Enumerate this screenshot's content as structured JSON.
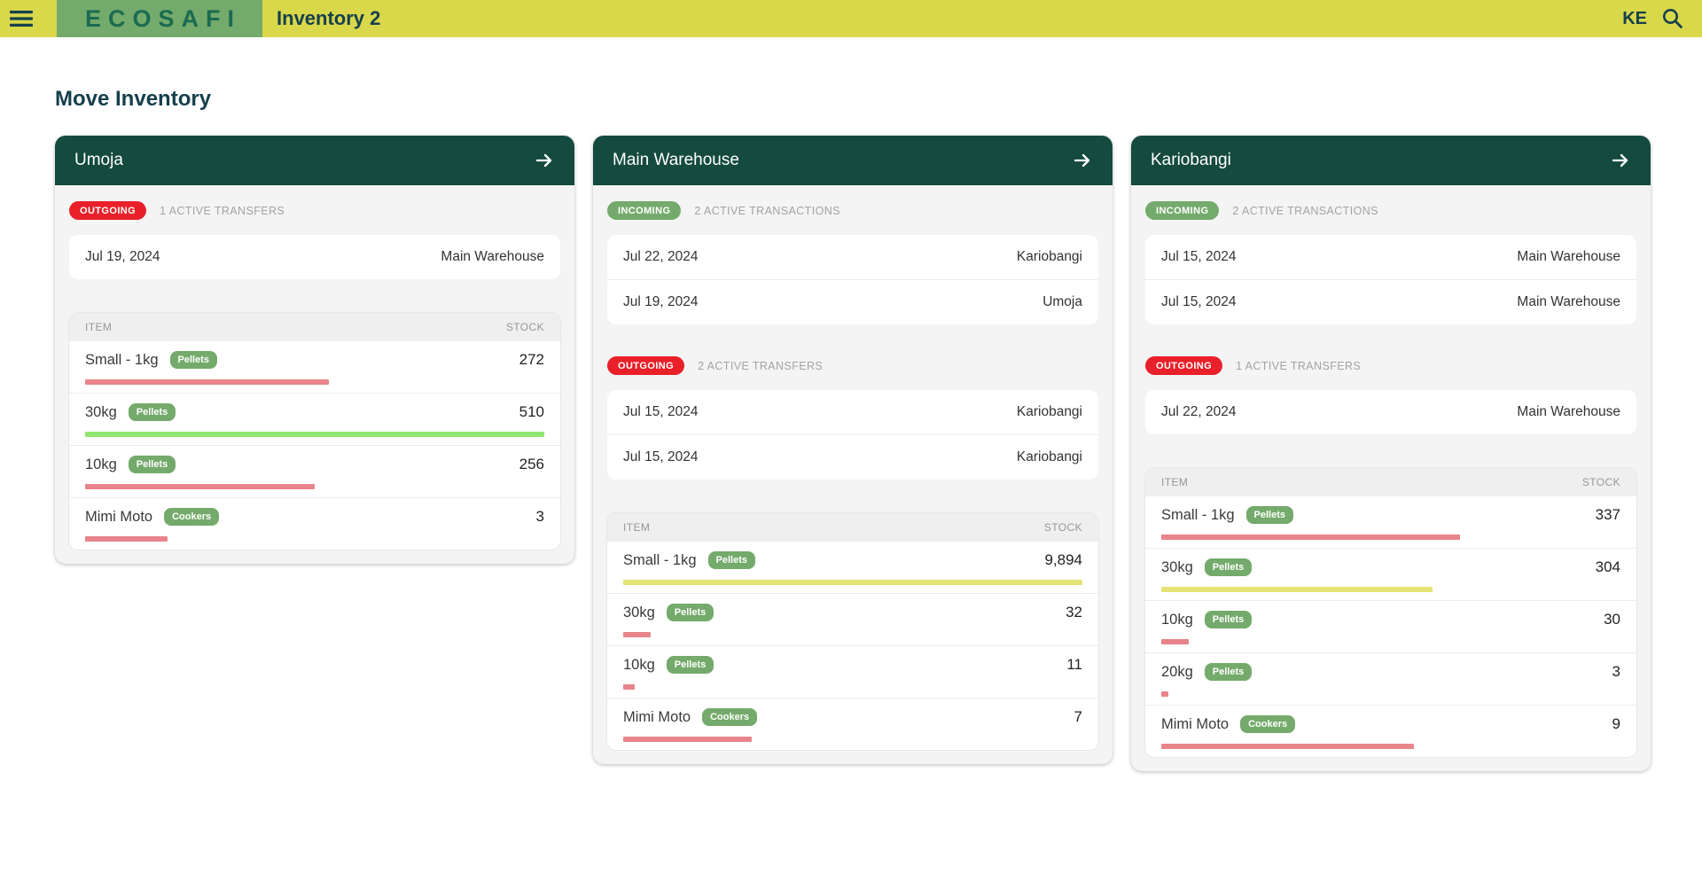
{
  "header": {
    "logo_text": "ECOSAFI",
    "app_title": "Inventory 2",
    "country_code": "KE",
    "icons": {
      "menu": "hamburger-icon",
      "search": "search-icon",
      "card_link": "arrow-right-icon"
    }
  },
  "page_title": "Move Inventory",
  "colors": {
    "appbar_bg": "#d9d74a",
    "logo_bg": "#74aa6b",
    "card_header_bg": "#154a3e",
    "outgoing_badge": "#e92029",
    "incoming_badge": "#74aa6b",
    "tag_badge": "#74aa6b",
    "bar_red": "#e8848a",
    "bar_green": "#90e56f",
    "bar_yellow": "#e5e276"
  },
  "cards": [
    {
      "title": "Umoja",
      "sections": [
        {
          "badge": "OUTGOING",
          "type": "outgoing",
          "label": "1 ACTIVE TRANSFERS",
          "transfers": [
            {
              "date": "Jul 19, 2024",
              "counterparty": "Main Warehouse"
            }
          ]
        }
      ],
      "table": {
        "headers": {
          "item": "ITEM",
          "stock": "STOCK"
        },
        "rows": [
          {
            "item": "Small - 1kg",
            "tag": "Pellets",
            "stock": "272",
            "bar": {
              "width_pct": 53,
              "color": "#e8848a"
            }
          },
          {
            "item": "30kg",
            "tag": "Pellets",
            "stock": "510",
            "bar": {
              "width_pct": 100,
              "color": "#90e56f"
            }
          },
          {
            "item": "10kg",
            "tag": "Pellets",
            "stock": "256",
            "bar": {
              "width_pct": 50,
              "color": "#e8848a"
            }
          },
          {
            "item": "Mimi Moto",
            "tag": "Cookers",
            "stock": "3",
            "bar": {
              "width_pct": 18,
              "color": "#e8848a"
            }
          }
        ]
      }
    },
    {
      "title": "Main Warehouse",
      "sections": [
        {
          "badge": "INCOMING",
          "type": "incoming",
          "label": "2 ACTIVE TRANSACTIONS",
          "transfers": [
            {
              "date": "Jul 22, 2024",
              "counterparty": "Kariobangi"
            },
            {
              "date": "Jul 19, 2024",
              "counterparty": "Umoja"
            }
          ]
        },
        {
          "badge": "OUTGOING",
          "type": "outgoing",
          "label": "2 ACTIVE TRANSFERS",
          "transfers": [
            {
              "date": "Jul 15, 2024",
              "counterparty": "Kariobangi"
            },
            {
              "date": "Jul 15, 2024",
              "counterparty": "Kariobangi"
            }
          ]
        }
      ],
      "table": {
        "headers": {
          "item": "ITEM",
          "stock": "STOCK"
        },
        "rows": [
          {
            "item": "Small - 1kg",
            "tag": "Pellets",
            "stock": "9,894",
            "bar": {
              "width_pct": 100,
              "color": "#e5e276"
            }
          },
          {
            "item": "30kg",
            "tag": "Pellets",
            "stock": "32",
            "bar": {
              "width_pct": 6,
              "color": "#e8848a"
            }
          },
          {
            "item": "10kg",
            "tag": "Pellets",
            "stock": "11",
            "bar": {
              "width_pct": 2.5,
              "color": "#e8848a"
            }
          },
          {
            "item": "Mimi Moto",
            "tag": "Cookers",
            "stock": "7",
            "bar": {
              "width_pct": 28,
              "color": "#e8848a"
            }
          }
        ]
      }
    },
    {
      "title": "Kariobangi",
      "sections": [
        {
          "badge": "INCOMING",
          "type": "incoming",
          "label": "2 ACTIVE TRANSACTIONS",
          "transfers": [
            {
              "date": "Jul 15, 2024",
              "counterparty": "Main Warehouse"
            },
            {
              "date": "Jul 15, 2024",
              "counterparty": "Main Warehouse"
            }
          ]
        },
        {
          "badge": "OUTGOING",
          "type": "outgoing",
          "label": "1 ACTIVE TRANSFERS",
          "transfers": [
            {
              "date": "Jul 22, 2024",
              "counterparty": "Main Warehouse"
            }
          ]
        }
      ],
      "table": {
        "headers": {
          "item": "ITEM",
          "stock": "STOCK"
        },
        "rows": [
          {
            "item": "Small - 1kg",
            "tag": "Pellets",
            "stock": "337",
            "bar": {
              "width_pct": 65,
              "color": "#e8848a"
            }
          },
          {
            "item": "30kg",
            "tag": "Pellets",
            "stock": "304",
            "bar": {
              "width_pct": 59,
              "color": "#e5e276"
            }
          },
          {
            "item": "10kg",
            "tag": "Pellets",
            "stock": "30",
            "bar": {
              "width_pct": 6,
              "color": "#e8848a"
            }
          },
          {
            "item": "20kg",
            "tag": "Pellets",
            "stock": "3",
            "bar": {
              "width_pct": 1.5,
              "color": "#e8848a"
            }
          },
          {
            "item": "Mimi Moto",
            "tag": "Cookers",
            "stock": "9",
            "bar": {
              "width_pct": 55,
              "color": "#e8848a"
            }
          }
        ]
      }
    }
  ]
}
